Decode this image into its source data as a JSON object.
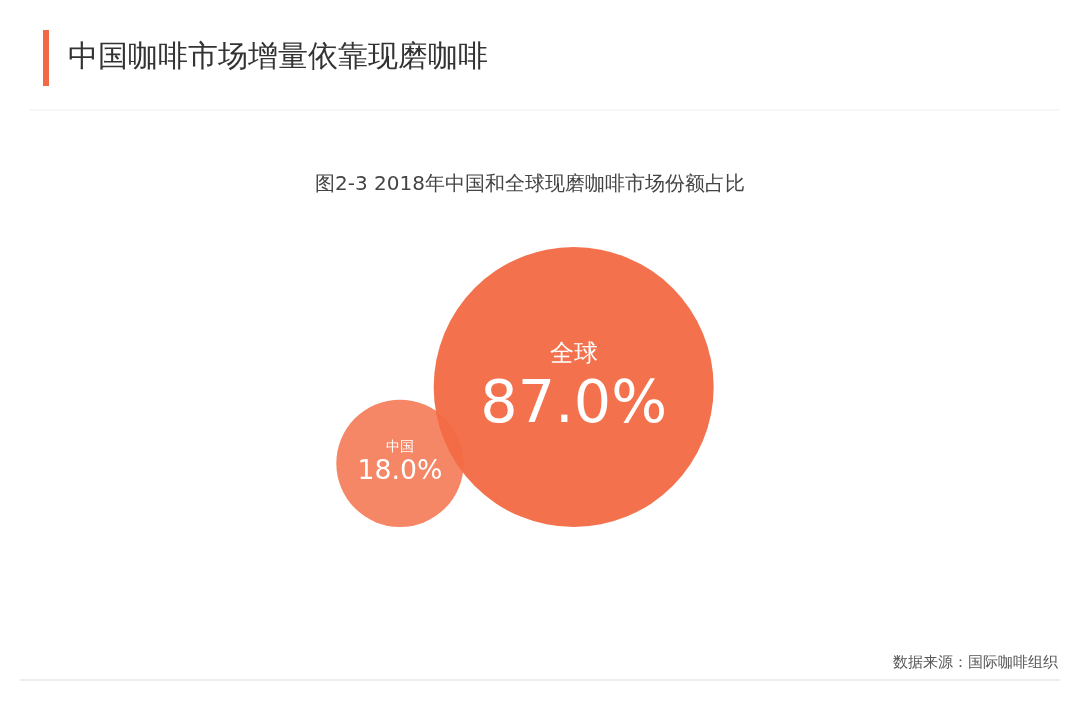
{
  "chart_data": {
    "type": "other",
    "title": "中国咖啡市场增量依靠现磨咖啡",
    "subtitle": "图2-3 2018年中国和全球现磨咖啡市场份额占比",
    "categories": [
      "中国",
      "全球"
    ],
    "values": [
      18.0,
      87.0
    ],
    "value_labels": [
      "18.0%",
      "87.0%"
    ],
    "colors": [
      "#f47f5e",
      "#f26a43"
    ],
    "annotations": [
      "数据来源：国际咖啡组织"
    ]
  }
}
